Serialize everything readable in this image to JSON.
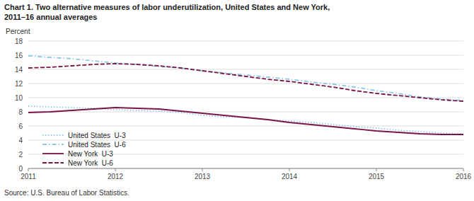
{
  "chart_data": {
    "type": "line",
    "title": "Chart 1. Two alternative measures of labor underutilization, United States and New York,",
    "subtitle": "2011–16 annual averages",
    "y_label": "Percent",
    "annotations": [
      "Source: U.S. Bureau of Labor Statistics."
    ],
    "x": [
      2011,
      2011.25,
      2011.5,
      2011.75,
      2012,
      2012.25,
      2012.5,
      2012.75,
      2013,
      2013.25,
      2013.5,
      2013.75,
      2014,
      2014.25,
      2014.5,
      2014.75,
      2015,
      2015.25,
      2015.5,
      2015.75,
      2016
    ],
    "xlim": [
      2011,
      2016
    ],
    "xticks": [
      2011,
      2012,
      2013,
      2014,
      2015,
      2016
    ],
    "ylim": [
      0,
      18
    ],
    "yticks": [
      0,
      2,
      4,
      6,
      8,
      10,
      12,
      14,
      16,
      18
    ],
    "grid": true,
    "legend": "lower left",
    "series": [
      {
        "name": "United States  U-3",
        "color": "#8ec8e8",
        "line_style": "dotted",
        "values": [
          8.8,
          8.7,
          8.6,
          8.5,
          8.3,
          8.2,
          8.1,
          7.9,
          7.5,
          7.3,
          7.2,
          6.9,
          6.7,
          6.5,
          6.2,
          5.9,
          5.7,
          5.4,
          5.2,
          5.0,
          4.9
        ]
      },
      {
        "name": "United States  U-6",
        "color": "#8ec8e8",
        "line_style": "dashdot",
        "values": [
          15.9,
          15.7,
          15.5,
          15.2,
          14.9,
          14.7,
          14.4,
          14.2,
          13.8,
          13.5,
          13.2,
          12.9,
          12.6,
          12.2,
          11.9,
          11.5,
          11.0,
          10.6,
          10.1,
          9.8,
          9.6
        ]
      },
      {
        "name": "New York  U-3",
        "color": "#7b1545",
        "line_style": "solid",
        "values": [
          7.9,
          8.0,
          8.2,
          8.4,
          8.6,
          8.5,
          8.4,
          8.1,
          7.8,
          7.5,
          7.2,
          6.9,
          6.5,
          6.2,
          5.9,
          5.6,
          5.3,
          5.1,
          4.9,
          4.8,
          4.8
        ]
      },
      {
        "name": "New York  U-6",
        "color": "#7b1545",
        "line_style": "dashed",
        "values": [
          14.2,
          14.3,
          14.5,
          14.7,
          14.8,
          14.7,
          14.5,
          14.2,
          13.8,
          13.4,
          13.0,
          12.6,
          12.3,
          11.9,
          11.5,
          11.0,
          10.6,
          10.3,
          10.0,
          9.7,
          9.5
        ]
      }
    ]
  }
}
